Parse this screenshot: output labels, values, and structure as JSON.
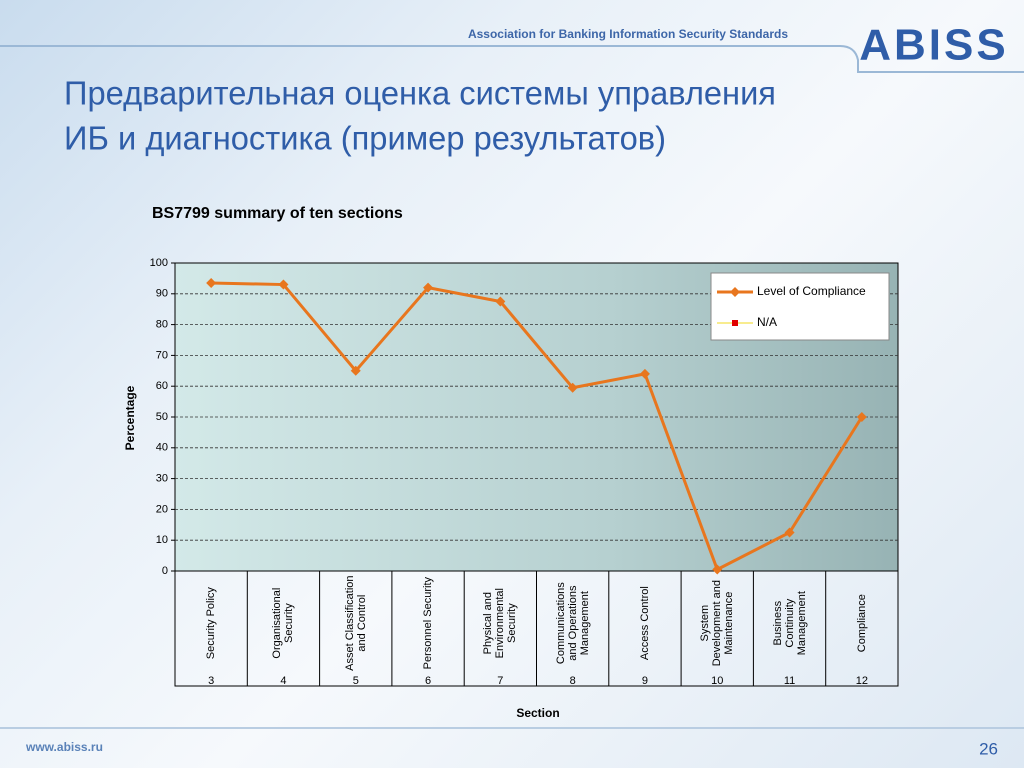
{
  "header": {
    "association": "Association for Banking Information Security Standards",
    "logo": "ABISS"
  },
  "slide_title": [
    "Предварительная оценка системы управления",
    "ИБ и диагностика (пример результатов)"
  ],
  "footer": {
    "url": "www.abiss.ru",
    "page": "26"
  },
  "chart_data": {
    "type": "line",
    "title": "BS7799 summary of ten sections",
    "x_label": "Section",
    "y_label": "Percentage",
    "categories": [
      "Security Policy",
      "Organisational Security",
      "Asset Classification and Control",
      "Personnel Security",
      "Physical and Environmental Security",
      "Communications and Operations Management",
      "Access Control",
      "System Development and Maintenance",
      "Business Continuity Management",
      "Compliance"
    ],
    "sections": [
      "3",
      "4",
      "5",
      "6",
      "7",
      "8",
      "9",
      "10",
      "11",
      "12"
    ],
    "series": [
      {
        "name": "Level of Compliance",
        "color": "#e8761e",
        "values": [
          93.5,
          93,
          65,
          92,
          87.5,
          59.5,
          64,
          0.5,
          12.5,
          50
        ]
      },
      {
        "name": "N/A",
        "color": "#f5e66a",
        "values": [
          null,
          null,
          null,
          null,
          null,
          null,
          null,
          null,
          null,
          null
        ]
      }
    ],
    "ylim": [
      0,
      100
    ],
    "yticks": [
      0,
      10,
      20,
      30,
      40,
      50,
      60,
      70,
      80,
      90,
      100
    ],
    "grid": true,
    "legend": "upper right"
  }
}
